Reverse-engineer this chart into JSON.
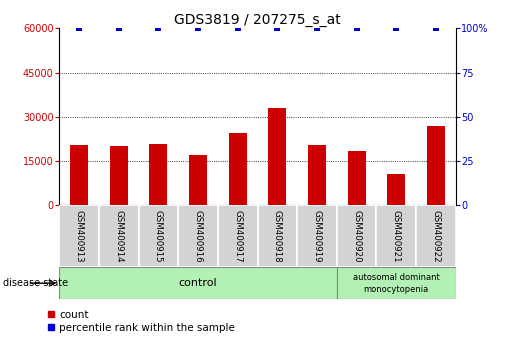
{
  "title": "GDS3819 / 207275_s_at",
  "samples": [
    "GSM400913",
    "GSM400914",
    "GSM400915",
    "GSM400916",
    "GSM400917",
    "GSM400918",
    "GSM400919",
    "GSM400920",
    "GSM400921",
    "GSM400922"
  ],
  "counts": [
    20500,
    20000,
    20800,
    17000,
    24500,
    33000,
    20500,
    18500,
    10500,
    27000
  ],
  "percentiles": [
    100,
    100,
    100,
    100,
    100,
    100,
    100,
    100,
    100,
    100
  ],
  "bar_color": "#cc0000",
  "dot_color": "#0000cc",
  "ylim_left": [
    0,
    60000
  ],
  "ylim_right": [
    0,
    100
  ],
  "yticks_left": [
    0,
    15000,
    30000,
    45000,
    60000
  ],
  "yticks_right": [
    0,
    25,
    50,
    75,
    100
  ],
  "grid_values": [
    15000,
    30000,
    45000
  ],
  "control_count": 7,
  "disease_state_label": "disease state",
  "legend_count_label": "count",
  "legend_percentile_label": "percentile rank within the sample",
  "tick_area_color": "#d3d3d3",
  "disease_color": "#b3f0b3",
  "title_fontsize": 10,
  "tick_fontsize": 7,
  "label_fontsize": 8,
  "bar_width": 0.45
}
